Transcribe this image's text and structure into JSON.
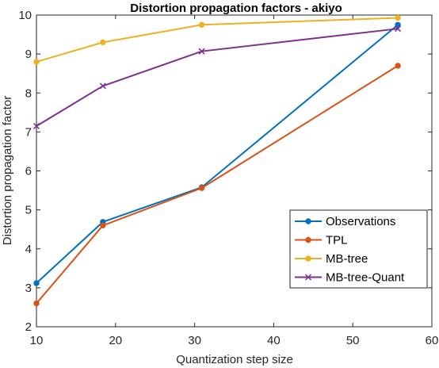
{
  "chart_data": {
    "type": "line",
    "title": "Distortion propagation factors - akiyo",
    "xlabel": "Quantization step size",
    "ylabel": "Distortion propagation factor",
    "xlim": [
      10,
      60
    ],
    "ylim": [
      2,
      10
    ],
    "xticks": [
      10,
      20,
      30,
      40,
      50,
      60
    ],
    "yticks": [
      2,
      3,
      4,
      5,
      6,
      7,
      8,
      9,
      10
    ],
    "grid": false,
    "legend_position": "bottom-right",
    "series": [
      {
        "name": "Observations",
        "color": "#0072BD",
        "marker": "circle",
        "x": [
          10,
          18.4,
          30.9,
          55.7
        ],
        "y": [
          3.12,
          4.69,
          5.58,
          9.75
        ]
      },
      {
        "name": "TPL",
        "color": "#D95319",
        "marker": "circle",
        "x": [
          10,
          18.4,
          30.9,
          55.7
        ],
        "y": [
          2.6,
          4.6,
          5.56,
          8.7
        ]
      },
      {
        "name": "MB-tree",
        "color": "#EDB120",
        "marker": "circle",
        "x": [
          10,
          18.4,
          30.9,
          55.7
        ],
        "y": [
          8.8,
          9.3,
          9.75,
          9.93
        ]
      },
      {
        "name": "MB-tree-Quant",
        "color": "#7E2F8E",
        "marker": "x",
        "x": [
          10,
          18.4,
          30.9,
          55.7
        ],
        "y": [
          7.15,
          8.18,
          9.07,
          9.65
        ]
      }
    ]
  }
}
